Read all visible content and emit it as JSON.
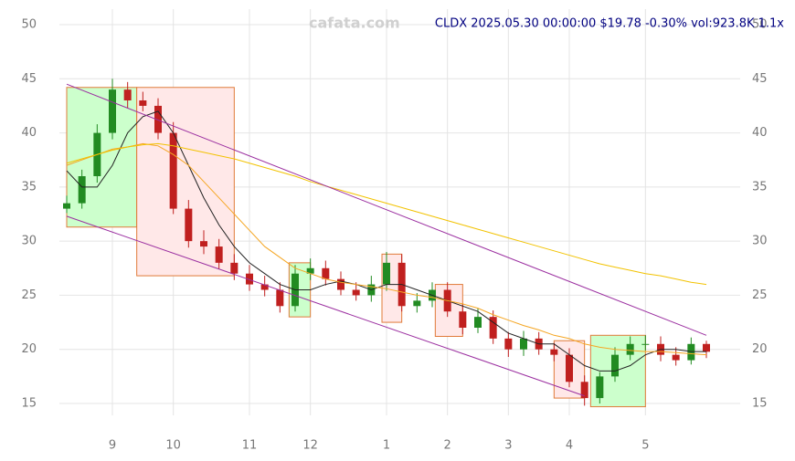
{
  "chart_data": {
    "type": "candlestick",
    "title": "CLDX 2025.05.30 00:00:00 $19.78 -0.30% vol:923.8K 1.1x",
    "watermark": "cafata.com",
    "categories": [
      null,
      null,
      null,
      "9",
      null,
      null,
      null,
      "10",
      null,
      null,
      null,
      null,
      "11",
      null,
      null,
      null,
      "12",
      null,
      null,
      null,
      null,
      "1",
      null,
      null,
      null,
      "2",
      null,
      null,
      null,
      "3",
      null,
      null,
      null,
      "4",
      null,
      null,
      null,
      null,
      "5",
      null,
      null,
      null,
      null
    ],
    "open": [
      33,
      33.5,
      36,
      40,
      44,
      43,
      42.5,
      40,
      33,
      30,
      29.5,
      28,
      27,
      26,
      25.5,
      24,
      27,
      27.5,
      26.5,
      25.5,
      25,
      26,
      28,
      24,
      24.5,
      25.5,
      23.5,
      22,
      23,
      21,
      20,
      21,
      20,
      19.5,
      17,
      15.5,
      17.5,
      19.5,
      20.5,
      20.5,
      19.5,
      19,
      20.5
    ],
    "high": [
      34.2,
      36.6,
      40.8,
      45,
      44.7,
      43.8,
      43.2,
      41,
      33.8,
      31,
      30.2,
      28.8,
      27.8,
      26.8,
      26.2,
      27.8,
      28.4,
      28.2,
      27.2,
      26.2,
      26.8,
      29,
      28.8,
      25.2,
      26.2,
      26.2,
      24.2,
      23.8,
      23.6,
      21.6,
      21.7,
      21.6,
      20.6,
      20.1,
      17.6,
      17.9,
      20.2,
      21.2,
      21.3,
      21.2,
      20.2,
      21.1,
      20.8
    ],
    "low": [
      32.6,
      33,
      35.4,
      39.4,
      42.3,
      42,
      39.4,
      32.5,
      29.4,
      28.8,
      27.4,
      26.4,
      25.4,
      24.9,
      23.4,
      23.5,
      26.4,
      25.9,
      25,
      24.5,
      24.4,
      25.4,
      23.5,
      23.4,
      23.9,
      23,
      21.4,
      21.5,
      20.5,
      19.3,
      19.4,
      19.5,
      18.9,
      16.5,
      14.8,
      15,
      17,
      19,
      19.9,
      18.9,
      18.5,
      18.6,
      19.2
    ],
    "close": [
      33.5,
      36,
      40,
      44,
      43,
      42.5,
      40,
      33,
      30,
      29.5,
      28,
      27,
      26,
      25.5,
      24,
      27,
      27.5,
      26.5,
      25.5,
      25,
      26,
      28,
      24,
      24.5,
      25.5,
      23.5,
      22,
      23,
      21,
      20,
      21,
      20,
      19.5,
      17,
      15.5,
      17.5,
      19.5,
      20.5,
      20.5,
      19.5,
      19,
      20.5,
      19.78
    ],
    "up_color": "#228b22",
    "down_color": "#c0201f",
    "lines": [
      {
        "color": "#222222",
        "values": [
          36.5,
          35,
          35,
          37,
          40,
          41.5,
          42,
          40,
          37,
          34,
          31.5,
          29.5,
          28,
          27,
          26,
          25.5,
          25.5,
          26,
          26.3,
          26,
          25.5,
          26,
          26,
          25.5,
          25,
          24.5,
          24,
          23.5,
          22.5,
          21.5,
          21,
          20.5,
          20.5,
          19.5,
          18.5,
          18,
          18,
          18.5,
          19.5,
          20,
          20,
          19.8,
          19.8
        ]
      },
      {
        "color": "#f5a623",
        "values": [
          37,
          37.5,
          38,
          38.5,
          38.7,
          39,
          38.8,
          38,
          37,
          35.5,
          34,
          32.5,
          31,
          29.5,
          28.5,
          27.5,
          27,
          26.5,
          26.2,
          26,
          25.8,
          25.6,
          25.3,
          25,
          24.8,
          24.5,
          24.2,
          23.8,
          23.2,
          22.7,
          22.2,
          21.8,
          21.3,
          21,
          20.5,
          20.2,
          20,
          19.9,
          19.8,
          19.8,
          19.7,
          19.6,
          19.5
        ]
      },
      {
        "color": "#f2c200",
        "values": [
          37.2,
          37.6,
          38,
          38.4,
          38.7,
          38.9,
          39,
          38.8,
          38.5,
          38.2,
          37.9,
          37.6,
          37.2,
          36.8,
          36.4,
          36,
          35.5,
          35.1,
          34.7,
          34.3,
          33.9,
          33.5,
          33.1,
          32.7,
          32.3,
          31.9,
          31.5,
          31.1,
          30.7,
          30.3,
          29.9,
          29.5,
          29.1,
          28.7,
          28.3,
          27.9,
          27.6,
          27.3,
          27,
          26.8,
          26.5,
          26.2,
          26
        ]
      }
    ],
    "trendlines": [
      {
        "color": "#9b2fa0",
        "x": [
          0,
          42
        ],
        "y": [
          44.5,
          21.3
        ]
      },
      {
        "color": "#9b2fa0",
        "x": [
          0,
          34
        ],
        "y": [
          32.3,
          15.7
        ]
      }
    ],
    "zones": [
      {
        "color": "#ccffcc",
        "x": [
          0,
          4.6
        ],
        "y": [
          31.3,
          44.2
        ]
      },
      {
        "color": "#ffe8e8",
        "x": [
          4.6,
          11
        ],
        "y": [
          26.8,
          44.2
        ]
      },
      {
        "color": "#ccffcc",
        "x": [
          14.6,
          16
        ],
        "y": [
          23,
          28
        ]
      },
      {
        "color": "#ffe8e8",
        "x": [
          20.7,
          22
        ],
        "y": [
          22.5,
          28.8
        ]
      },
      {
        "color": "#ffe8e8",
        "x": [
          24.2,
          26
        ],
        "y": [
          21.2,
          26
        ]
      },
      {
        "color": "#ffe8e8",
        "x": [
          32,
          34
        ],
        "y": [
          15.5,
          20.8
        ]
      },
      {
        "color": "#ccffcc",
        "x": [
          34.4,
          38
        ],
        "y": [
          14.7,
          21.3
        ]
      }
    ],
    "ylim": [
      15,
      50
    ],
    "yticks": [
      15,
      20,
      25,
      30,
      35,
      40,
      45,
      50
    ],
    "grid": true
  }
}
